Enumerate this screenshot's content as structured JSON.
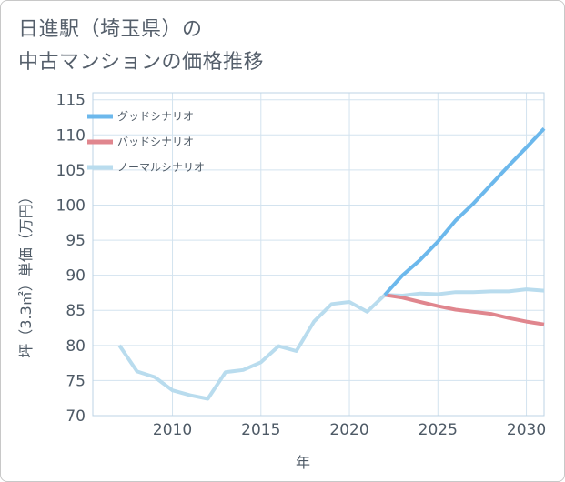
{
  "title_lines": [
    "日進駅（埼玉県）の",
    "中古マンションの価格推移"
  ],
  "chart_data": {
    "type": "line",
    "xlabel": "年",
    "ylabel": "坪（3.3㎡）単価（万円）",
    "xlim": [
      2005.5,
      2031
    ],
    "ylim": [
      70,
      116
    ],
    "x_ticks": [
      2010,
      2015,
      2020,
      2025,
      2030
    ],
    "y_ticks": [
      70,
      75,
      80,
      85,
      90,
      95,
      100,
      105,
      110,
      115
    ],
    "x_tick_labels": [
      "2010",
      "2015",
      "2020",
      "2025",
      "2030"
    ],
    "y_tick_labels": [
      "70",
      "75",
      "80",
      "85",
      "90",
      "95",
      "100",
      "105",
      "110",
      "115"
    ],
    "grid": true,
    "legend_position": "top-left",
    "series": [
      {
        "name": "グッドシナリオ",
        "color": "#6cb8ec",
        "x": [
          2022,
          2023,
          2024,
          2025,
          2026,
          2027,
          2028,
          2029,
          2030,
          2031
        ],
        "values": [
          87.2,
          90.0,
          92.2,
          94.8,
          97.8,
          100.2,
          102.9,
          105.6,
          108.2,
          110.9
        ]
      },
      {
        "name": "バッドシナリオ",
        "color": "#e0868e",
        "x": [
          2022,
          2023,
          2024,
          2025,
          2026,
          2027,
          2028,
          2029,
          2030,
          2031
        ],
        "values": [
          87.2,
          86.8,
          86.2,
          85.6,
          85.1,
          84.8,
          84.5,
          83.9,
          83.4,
          83.0
        ]
      },
      {
        "name": "ノーマルシナリオ",
        "color": "#b9dcee",
        "x": [
          2007,
          2008,
          2009,
          2010,
          2011,
          2012,
          2013,
          2014,
          2015,
          2016,
          2017,
          2018,
          2019,
          2020,
          2021,
          2022,
          2023,
          2024,
          2025,
          2026,
          2027,
          2028,
          2029,
          2030,
          2031
        ],
        "values": [
          80.0,
          76.3,
          75.5,
          73.6,
          72.9,
          72.4,
          76.2,
          76.5,
          77.6,
          79.9,
          79.2,
          83.4,
          85.9,
          86.2,
          84.8,
          87.2,
          87.1,
          87.4,
          87.3,
          87.6,
          87.6,
          87.7,
          87.7,
          88.0,
          87.8
        ]
      }
    ]
  }
}
